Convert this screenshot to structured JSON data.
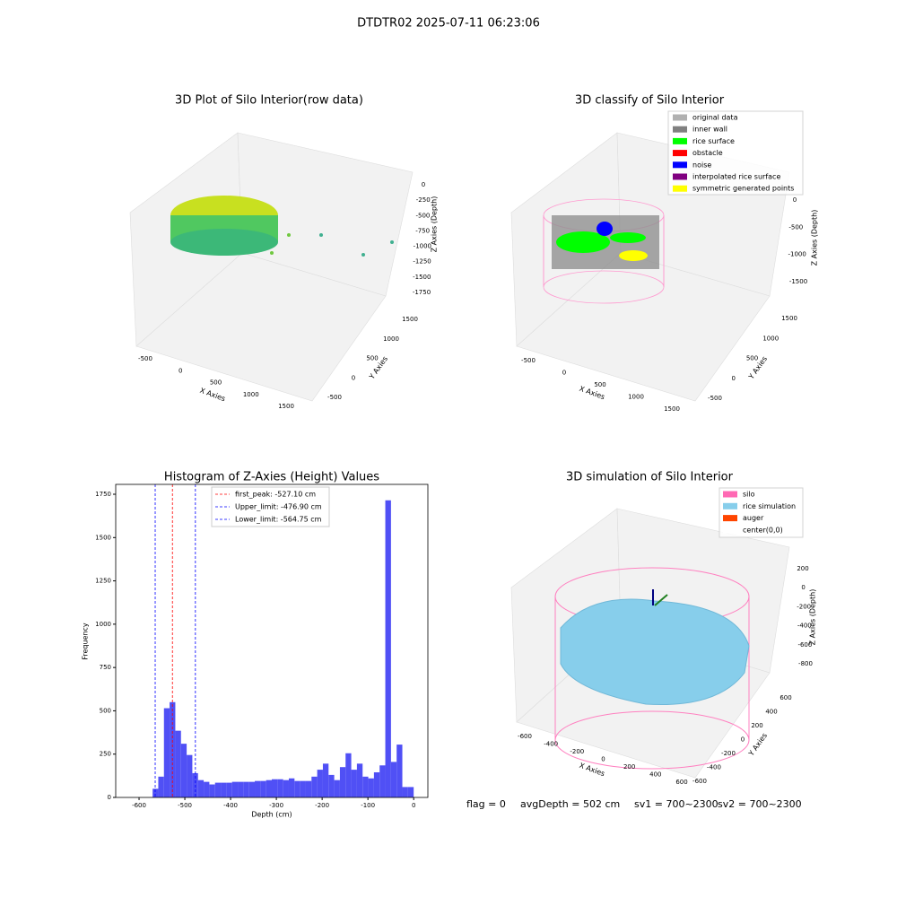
{
  "title": "DTDTR02 2025-07-11 06:23:06",
  "footer": [
    "flag = 0",
    "avgDepth = 502 cm",
    "sv1 = 700~2300",
    "sv2 = 700~2300"
  ],
  "chart_data": [
    {
      "type": "scatter3d",
      "title": "3D Plot of Silo Interior(row data)",
      "xlabel": "X Axies",
      "ylabel": "Y Axies",
      "zlabel": "Z Axies (Depth)",
      "xticks": [
        -500,
        0,
        500,
        1000,
        1500
      ],
      "yticks": [
        -500,
        0,
        500,
        1000,
        1500
      ],
      "zticks": [
        0,
        -250,
        -500,
        -750,
        -1000,
        -1250,
        -1500,
        -1750
      ]
    },
    {
      "type": "scatter3d",
      "title": "3D classify of Silo Interior",
      "xlabel": "X Axies",
      "ylabel": "Y Axies",
      "zlabel": "Z Axies (Depth)",
      "xticks": [
        -500,
        0,
        500,
        1000,
        1500
      ],
      "yticks": [
        -500,
        0,
        500,
        1000,
        1500
      ],
      "zticks": [
        0,
        -500,
        -1000,
        -1500
      ],
      "series": [
        {
          "name": "original data",
          "color": "#b0b0b0"
        },
        {
          "name": "inner wall",
          "color": "#808080"
        },
        {
          "name": "rice surface",
          "color": "#00ff00"
        },
        {
          "name": "obstacle",
          "color": "#ff0000"
        },
        {
          "name": "noise",
          "color": "#0000ff"
        },
        {
          "name": "interpolated rice surface",
          "color": "#800080"
        },
        {
          "name": "symmetric generated points",
          "color": "#ffff00"
        }
      ]
    },
    {
      "type": "histogram",
      "title": "Histogram of Z-Axies (Height) Values",
      "xlabel": "Depth (cm)",
      "ylabel": "Frequency",
      "color": "#5050f5",
      "bins": [
        -570.4,
        -558.0,
        -545.6,
        -533.2,
        -520.8,
        -508.4,
        -496.0,
        -483.6,
        -471.2,
        -458.8,
        -446.4,
        -434.0,
        -421.6,
        -409.2,
        -396.8,
        -384.4,
        -372.0,
        -359.6,
        -347.2,
        -334.8,
        -322.4,
        -310.0,
        -297.6,
        -285.2,
        -272.8,
        -260.4,
        -248.0,
        -235.6,
        -223.2,
        -210.8,
        -198.4,
        -186.0,
        -173.6,
        -161.2,
        -148.8,
        -136.4,
        -124.0,
        -111.6,
        -99.2,
        -86.8,
        -74.4,
        -62.0,
        -49.6,
        -37.2,
        -24.8,
        -12.4,
        0
      ],
      "values": [
        50,
        120,
        515,
        550,
        385,
        310,
        245,
        140,
        100,
        90,
        75,
        85,
        85,
        85,
        90,
        90,
        90,
        90,
        95,
        95,
        100,
        105,
        105,
        100,
        110,
        95,
        95,
        95,
        120,
        160,
        195,
        130,
        100,
        175,
        255,
        160,
        195,
        120,
        110,
        145,
        185,
        1715,
        205,
        305,
        60,
        60
      ],
      "xlim": [
        -651,
        31
      ],
      "ylim": [
        0,
        1807
      ],
      "xticks": [
        -600,
        -500,
        -400,
        -300,
        -200,
        -100,
        0
      ],
      "yticks": [
        0,
        250,
        500,
        750,
        1000,
        1250,
        1500,
        1750
      ],
      "lines": [
        {
          "label": "first_peak: -527.10 cm",
          "value": -527.1,
          "color": "#ff0000"
        },
        {
          "label": "Upper_limit: -476.90 cm",
          "value": -476.9,
          "color": "#0000ff"
        },
        {
          "label": "Lower_limit: -564.75 cm",
          "value": -564.75,
          "color": "#0000ff"
        }
      ]
    },
    {
      "type": "surface3d",
      "title": "3D simulation of Silo Interior",
      "xlabel": "X Axies",
      "ylabel": "Y Axies",
      "zlabel": "Z Axies (Depth)",
      "xticks": [
        -600,
        -400,
        -200,
        0,
        200,
        400,
        600
      ],
      "yticks": [
        -600,
        -400,
        -200,
        0,
        200,
        400,
        600
      ],
      "zticks": [
        200,
        0,
        -200,
        -400,
        -600,
        -800
      ],
      "series": [
        {
          "name": "silo",
          "color": "#ff69b4"
        },
        {
          "name": "rice simulation",
          "color": "#87ceeb"
        },
        {
          "name": "auger",
          "color": "#ff4500"
        },
        {
          "name": "center(0,0)",
          "color": "#ffffff"
        }
      ]
    }
  ]
}
